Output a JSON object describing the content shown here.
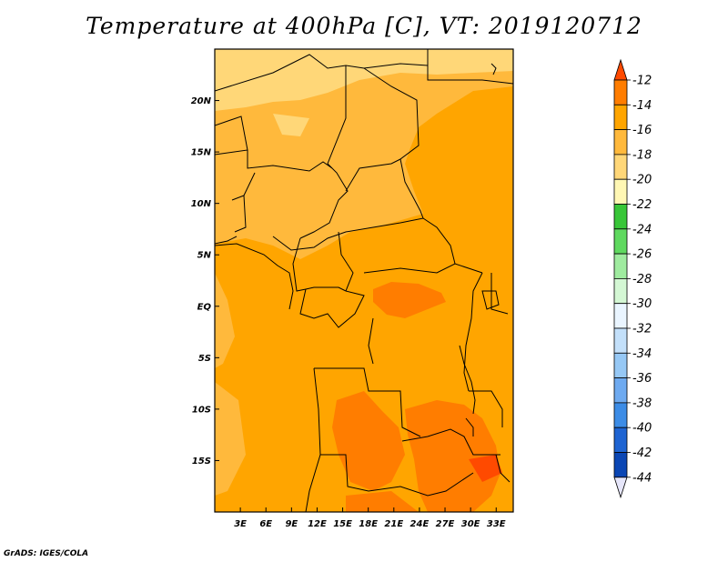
{
  "chart_data": {
    "type": "heatmap",
    "title": "Temperature at 400hPa [C], VT: 2019120712",
    "xlabel": "",
    "ylabel": "",
    "x_range_deg": [
      0,
      35
    ],
    "y_range_deg": [
      -20,
      25
    ],
    "x_ticks": [
      {
        "value": 3,
        "label": "3E"
      },
      {
        "value": 6,
        "label": "6E"
      },
      {
        "value": 9,
        "label": "9E"
      },
      {
        "value": 12,
        "label": "12E"
      },
      {
        "value": 15,
        "label": "15E"
      },
      {
        "value": 18,
        "label": "18E"
      },
      {
        "value": 21,
        "label": "21E"
      },
      {
        "value": 24,
        "label": "24E"
      },
      {
        "value": 27,
        "label": "27E"
      },
      {
        "value": 30,
        "label": "30E"
      },
      {
        "value": 33,
        "label": "33E"
      }
    ],
    "y_ticks": [
      {
        "value": 20,
        "label": "20N"
      },
      {
        "value": 15,
        "label": "15N"
      },
      {
        "value": 10,
        "label": "10N"
      },
      {
        "value": 5,
        "label": "5N"
      },
      {
        "value": 0,
        "label": "EQ"
      },
      {
        "value": -5,
        "label": "5S"
      },
      {
        "value": -10,
        "label": "10S"
      },
      {
        "value": -15,
        "label": "15S"
      }
    ],
    "colorbar": {
      "labels": [
        "-12",
        "-14",
        "-16",
        "-18",
        "-20",
        "-22",
        "-24",
        "-26",
        "-28",
        "-30",
        "-32",
        "-34",
        "-36",
        "-38",
        "-40",
        "-42",
        "-44"
      ],
      "colors": [
        "#ff4a00",
        "#ff7d00",
        "#ffa500",
        "#ffb93c",
        "#ffd778",
        "#fff7b4",
        "#38c638",
        "#5fd95f",
        "#9feb9f",
        "#d4f7d4",
        "#eaf5ff",
        "#c3e0fa",
        "#96c8f5",
        "#6eaaf0",
        "#3c8ce6",
        "#1e64d2",
        "#0a46b4",
        "#0a1e78"
      ],
      "under_color": "#e6e6fa",
      "over_color": "#ff4a00"
    },
    "field_regions": [
      {
        "region": "far north (Sahara, above ~20N)",
        "value_range_c": "-20 to -18"
      },
      {
        "region": "Sahel / northern band (5N-20N)",
        "value_range_c": "-18 to -16"
      },
      {
        "region": "central / equatorial belt",
        "value_range_c": "-16 to -14"
      },
      {
        "region": "northeast (Sudan) and Gulf of Guinea",
        "value_range_c": "-16 to -14"
      },
      {
        "region": "small patches near 2N 18-23E",
        "value_range_c": "-14 to -12"
      },
      {
        "region": "southern Angola / Zambia / Mozambique (12S-20S)",
        "value_range_c": "-14 to -12"
      }
    ]
  },
  "credit": "GrADS: IGES/COLA"
}
